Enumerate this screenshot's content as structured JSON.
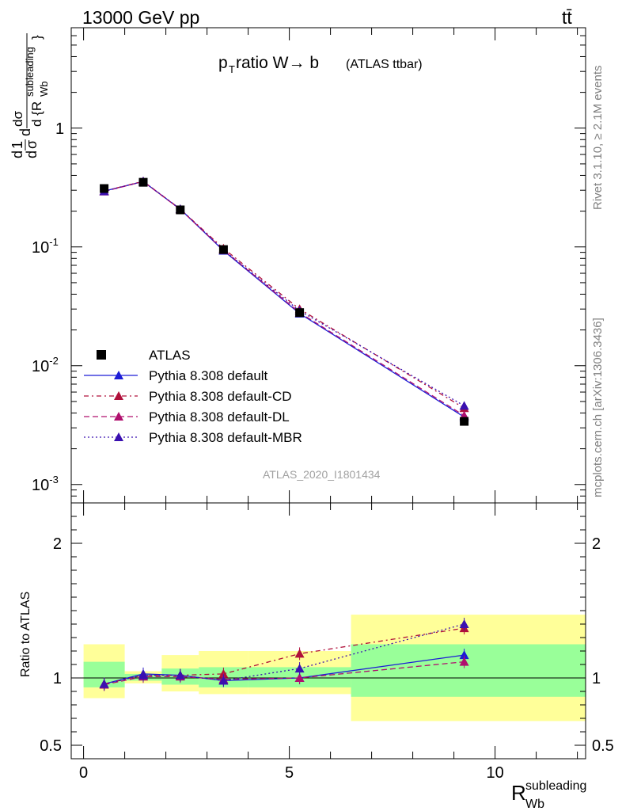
{
  "header": {
    "left": "13000 GeV pp",
    "right": "tt̄"
  },
  "side": {
    "rivet": "Rivet 3.1.10, ≥ 2.1M events",
    "mcplots": "mcplots.cern.ch [arXiv:1306.3436]"
  },
  "plot": {
    "title_main": "p",
    "title_sub": "T",
    "title_rest": " ratio W→ b",
    "title_small": "(ATLAS ttbar)",
    "analysis": "ATLAS_2020_I1801434",
    "ylabel": "dσ/d R_Wb^subleading (normalized)",
    "ratio_ylabel": "Ratio to ATLAS",
    "xlabel_main": "R",
    "xlabel_sub": "Wb",
    "xlabel_sup": "subleading"
  },
  "colors": {
    "data": "#000000",
    "default": "#1c1cd6",
    "cd": "#b0103a",
    "dl": "#b0106e",
    "mbr": "#3a10b0",
    "band_inner": "#99ff99",
    "band_outer": "#ffff99"
  },
  "chart_data": {
    "type": "line",
    "x_edges": [
      0,
      1,
      1.9,
      2.8,
      4.0,
      6.5,
      12.2
    ],
    "x": [
      0.5,
      1.45,
      2.35,
      3.4,
      5.25,
      9.25
    ],
    "xlim": [
      -0.3,
      12.2
    ],
    "ylim_main": [
      0.0007,
      7
    ],
    "yscale_main": "log",
    "ylim_ratio": [
      0.4,
      2.3
    ],
    "main_yticks": [
      "10^{-3}",
      "10^{-2}",
      "10^{-1}",
      "1"
    ],
    "ratio_yticks": [
      "0.5",
      "1",
      "2"
    ],
    "xticks": [
      "0",
      "5",
      "10"
    ],
    "data": {
      "name": "ATLAS",
      "values": [
        0.31,
        0.35,
        0.205,
        0.095,
        0.028,
        0.0034
      ],
      "band_inner": [
        [
          0.93,
          1.12
        ],
        [
          0.98,
          1.03
        ],
        [
          0.95,
          1.07
        ],
        [
          0.93,
          1.08
        ],
        [
          0.93,
          1.08
        ],
        [
          0.86,
          1.25
        ]
      ],
      "band_outer": [
        [
          0.85,
          1.25
        ],
        [
          0.96,
          1.05
        ],
        [
          0.9,
          1.17
        ],
        [
          0.88,
          1.2
        ],
        [
          0.88,
          1.2
        ],
        [
          0.68,
          1.47
        ]
      ]
    },
    "series": [
      {
        "name": "Pythia 8.308 default",
        "color_key": "default",
        "dash": "",
        "values": [
          0.295,
          0.355,
          0.208,
          0.093,
          0.0275,
          0.0037
        ],
        "ratio": [
          0.955,
          1.03,
          1.02,
          0.98,
          1.0,
          1.17
        ]
      },
      {
        "name": "Pythia 8.308 default-CD",
        "color_key": "cd",
        "dash": "6,4,2,4",
        "values": [
          0.295,
          0.357,
          0.208,
          0.097,
          0.03,
          0.0044
        ],
        "ratio": [
          0.955,
          1.02,
          1.02,
          1.03,
          1.18,
          1.37
        ]
      },
      {
        "name": "Pythia 8.308 default-DL",
        "color_key": "dl",
        "dash": "7,4",
        "values": [
          0.293,
          0.355,
          0.207,
          0.094,
          0.028,
          0.0038
        ],
        "ratio": [
          0.95,
          1.01,
          1.01,
          0.99,
          1.0,
          1.12
        ]
      },
      {
        "name": "Pythia 8.308 default-MBR",
        "color_key": "mbr",
        "dash": "2,3",
        "values": [
          0.294,
          0.356,
          0.208,
          0.094,
          0.029,
          0.0046
        ],
        "ratio": [
          0.955,
          1.02,
          1.02,
          0.98,
          1.07,
          1.4
        ]
      }
    ]
  }
}
